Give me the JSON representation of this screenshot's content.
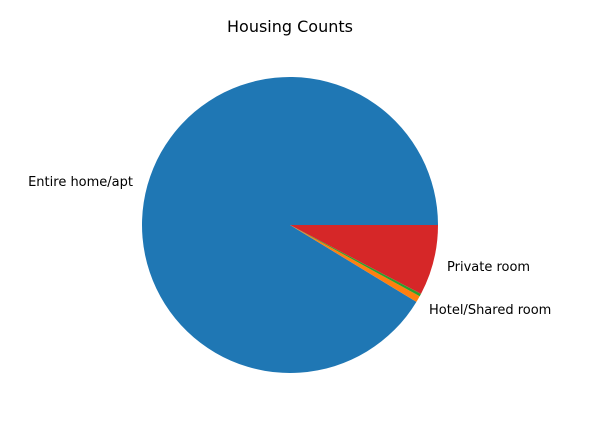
{
  "chart_data": {
    "type": "pie",
    "title": "Housing Counts",
    "slices": [
      {
        "label": "Entire home/apt",
        "value": 91.3,
        "color": "#1f77b4"
      },
      {
        "label": "Hotel/Shared room",
        "value": 0.7,
        "color": "#ff7f0e"
      },
      {
        "label": "Hotel/Shared room",
        "value": 0.3,
        "color": "#2ca02c"
      },
      {
        "label": "Private room",
        "value": 7.7,
        "color": "#d62728"
      }
    ],
    "labels": [
      {
        "text": "Entire home/apt"
      },
      {
        "text": "Hotel/Shared room"
      },
      {
        "text": "Private room"
      }
    ],
    "start_angle_deg": 0,
    "direction": "counterclockwise",
    "legend": false
  }
}
